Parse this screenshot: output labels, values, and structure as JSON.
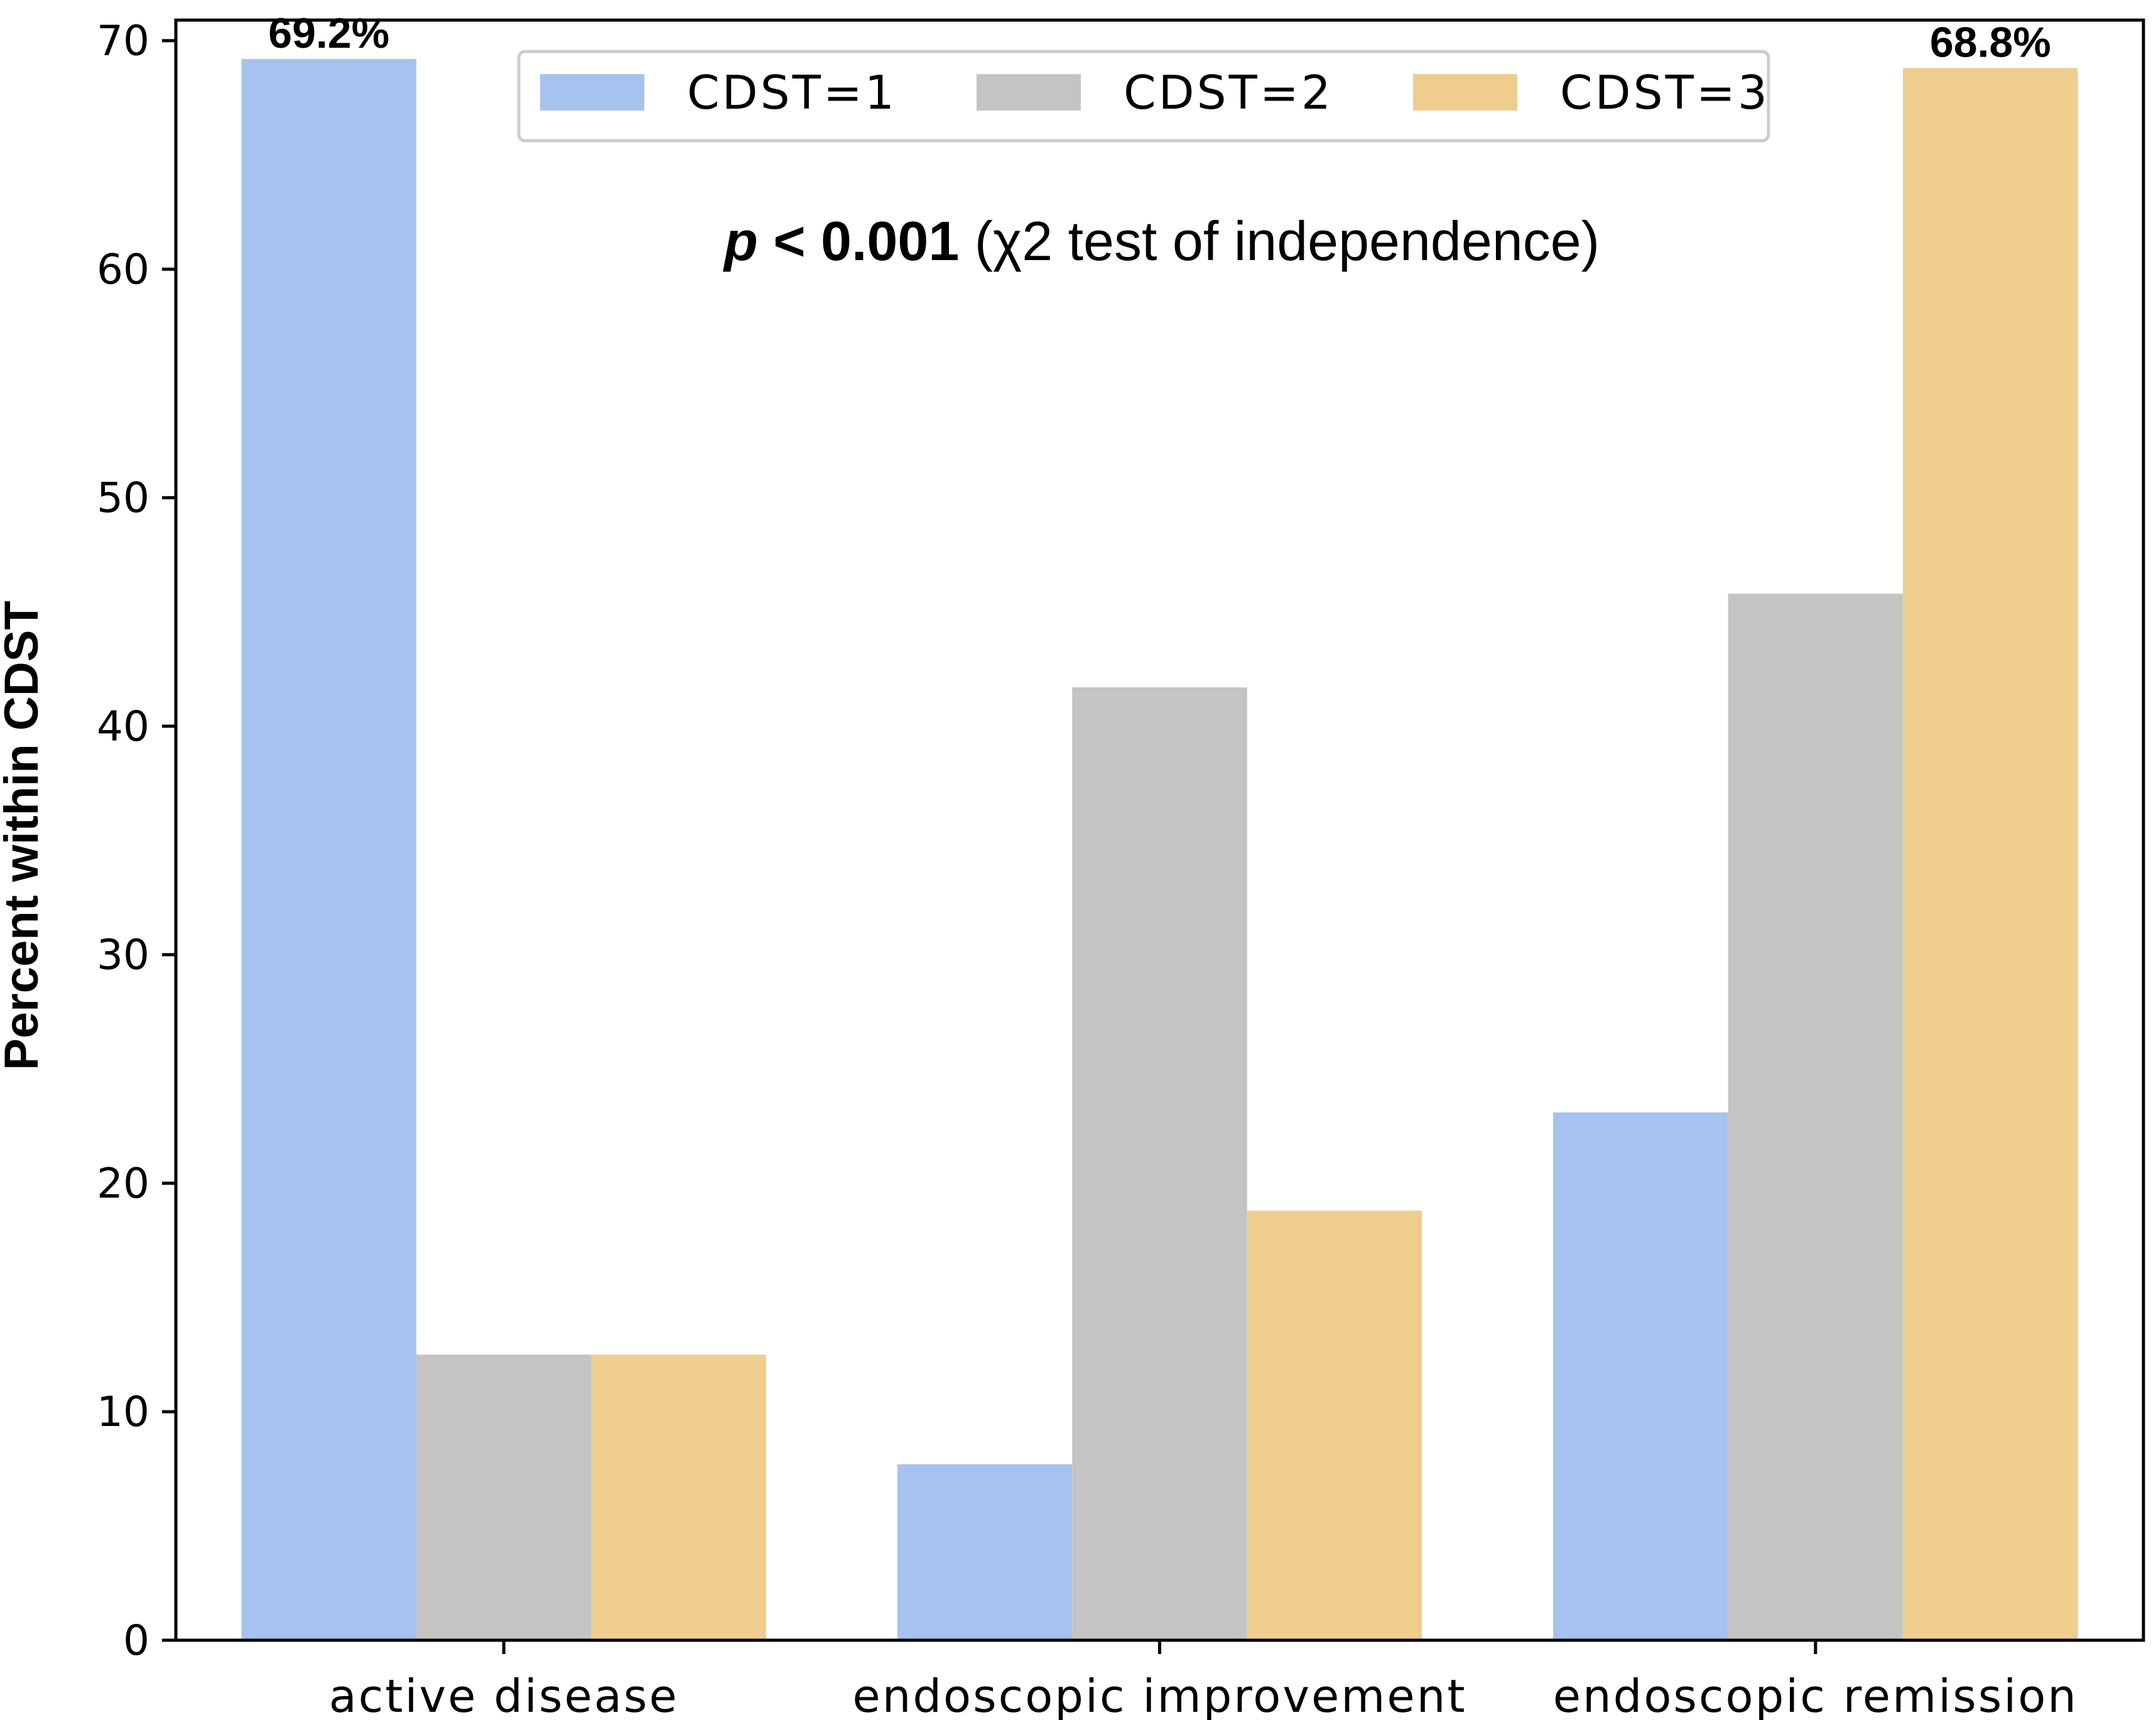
{
  "chart_data": {
    "type": "bar",
    "categories": [
      "active disease",
      "endoscopic improvement",
      "endoscopic remission"
    ],
    "series": [
      {
        "name": "CDST=1",
        "color": "#a6c3ef",
        "values": [
          69.2,
          7.7,
          23.1
        ]
      },
      {
        "name": "CDST=2",
        "color": "#c4c4c4",
        "values": [
          12.5,
          41.7,
          45.8
        ]
      },
      {
        "name": "CDST=3",
        "color": "#efcd8e",
        "values": [
          12.5,
          18.8,
          68.8
        ]
      }
    ],
    "data_labels": [
      {
        "series": 0,
        "category": 0,
        "text": "69.2%"
      },
      {
        "series": 2,
        "category": 2,
        "text": "68.8%"
      }
    ],
    "title": "",
    "xlabel": "",
    "ylabel": "Percent within CDST",
    "ylim": [
      0,
      70.9
    ],
    "yticks": [
      0,
      10,
      20,
      30,
      40,
      50,
      60,
      70
    ],
    "legend": "top-center",
    "grid": false,
    "annotation": {
      "bold_italic": "p",
      "bold": " < 0.001",
      "regular": " (χ2 test of independence)"
    }
  }
}
